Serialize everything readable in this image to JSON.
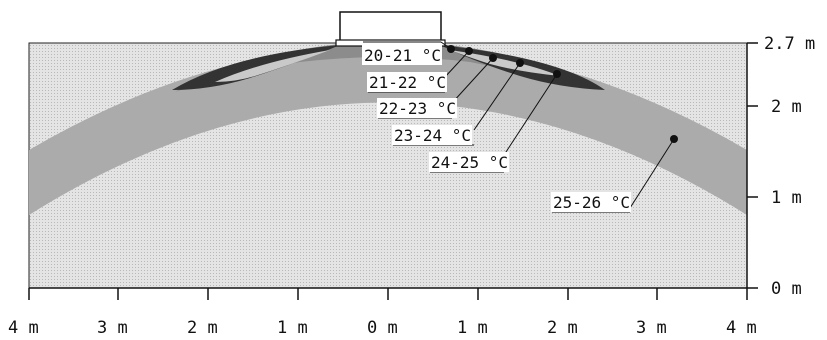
{
  "diagram": {
    "x_ticks": [
      "4 m",
      "3 m",
      "2 m",
      "1 m",
      "0 m",
      "1 m",
      "2 m",
      "3 m",
      "4 m"
    ],
    "y_ticks": [
      "2.7 m",
      "2 m",
      "1 m",
      "0 m"
    ],
    "zones": [
      {
        "label": "20-21 °C"
      },
      {
        "label": "21-22 °C"
      },
      {
        "label": "22-23 °C"
      },
      {
        "label": "23-24 °C"
      },
      {
        "label": "24-25 °C"
      },
      {
        "label": "25-26 °C"
      }
    ],
    "colors": {
      "background_zone": "#dcdcdc",
      "zone_25_26": "#a9a9a9",
      "zone_24_25": "#808080",
      "zone_23_24": "#5a5a5a",
      "zone_22_23": "#3a3a3a",
      "zone_21_22": "#cfcfcf",
      "zone_20_21": "#1c1c1c"
    }
  }
}
